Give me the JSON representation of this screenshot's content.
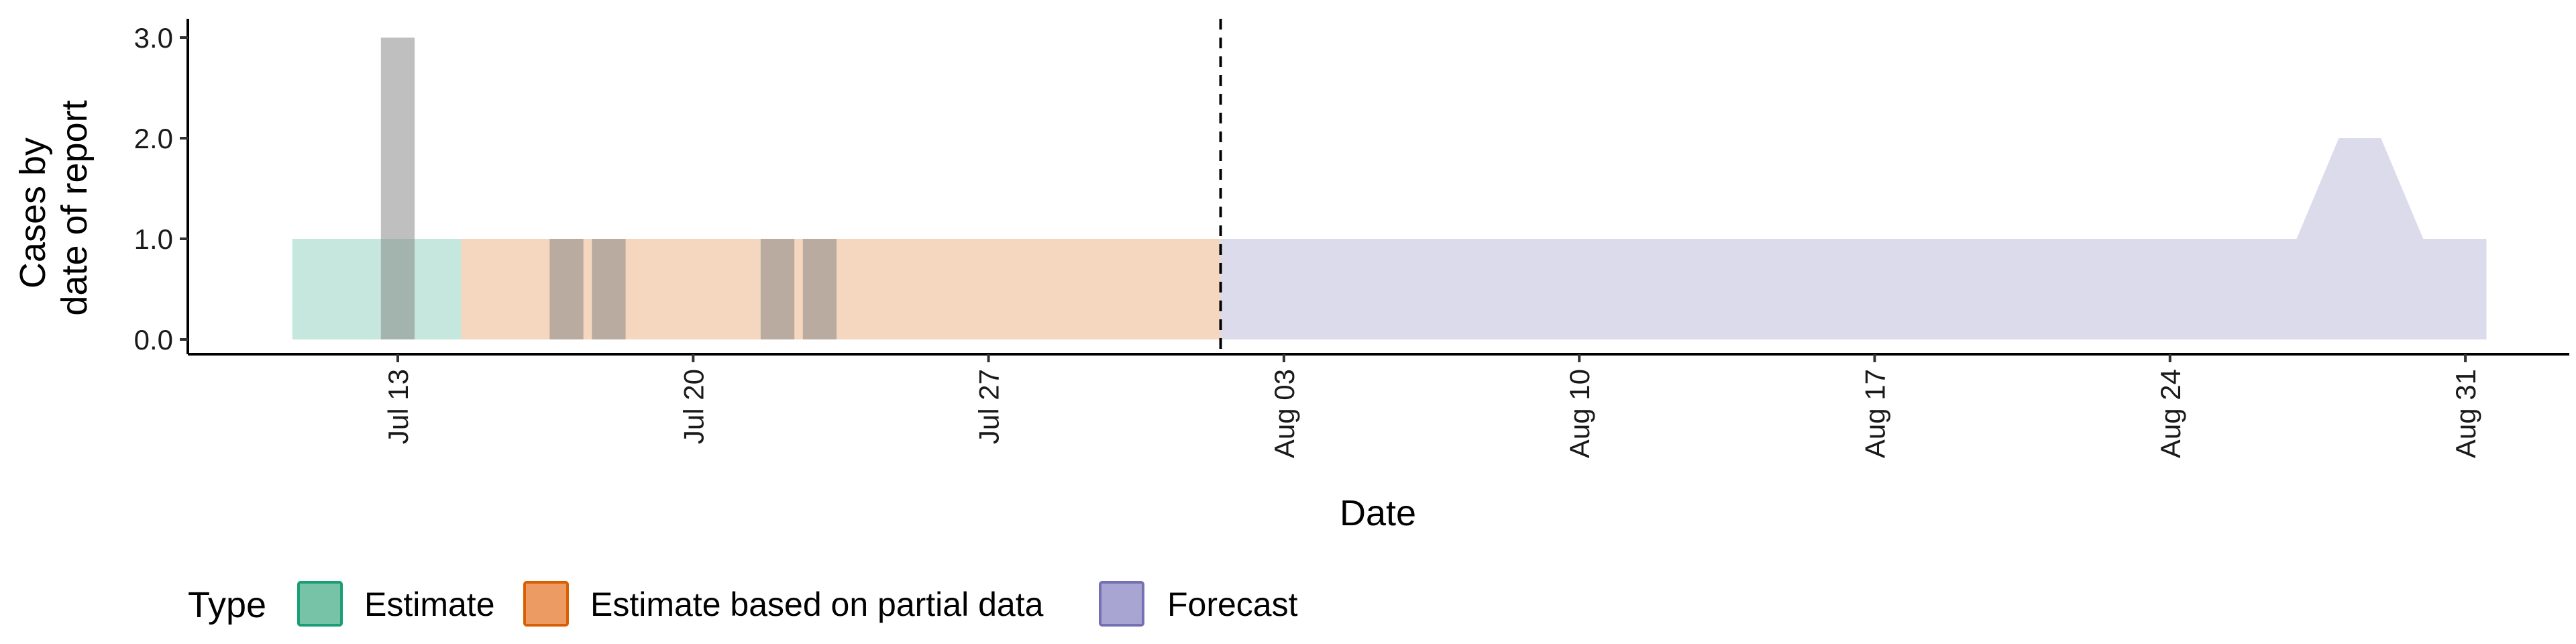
{
  "chart_data": {
    "type": "bar",
    "title": "",
    "xlabel": "Date",
    "ylabel": [
      "Cases by",
      "date of report"
    ],
    "ylim": [
      0,
      3
    ],
    "y_ticks": [
      "0.0",
      "1.0",
      "2.0",
      "3.0"
    ],
    "x_ticks": [
      {
        "date": "2020-07-13",
        "label": "Jul 13"
      },
      {
        "date": "2020-07-20",
        "label": "Jul 20"
      },
      {
        "date": "2020-07-27",
        "label": "Jul 27"
      },
      {
        "date": "2020-08-03",
        "label": "Aug 03"
      },
      {
        "date": "2020-08-10",
        "label": "Aug 10"
      },
      {
        "date": "2020-08-17",
        "label": "Aug 17"
      },
      {
        "date": "2020-08-24",
        "label": "Aug 24"
      },
      {
        "date": "2020-08-31",
        "label": "Aug 31"
      }
    ],
    "x_range": [
      "2020-07-09",
      "2020-09-02"
    ],
    "forecast_date": "2020-08-01",
    "observed_cases": [
      {
        "date": "2020-07-13",
        "value": 3
      },
      {
        "date": "2020-07-17",
        "value": 1
      },
      {
        "date": "2020-07-18",
        "value": 1
      },
      {
        "date": "2020-07-22",
        "value": 1
      },
      {
        "date": "2020-07-23",
        "value": 1
      }
    ],
    "series": [
      {
        "name": "Estimate",
        "color": "#1b9e77",
        "points": [
          {
            "date": "2020-07-11",
            "value": 1
          },
          {
            "date": "2020-07-14",
            "value": 1
          }
        ]
      },
      {
        "name": "Estimate based on partial data",
        "color": "#d95f02",
        "points": [
          {
            "date": "2020-07-15",
            "value": 1
          },
          {
            "date": "2020-08-01",
            "value": 1
          }
        ]
      },
      {
        "name": "Forecast",
        "color": "#7570b3",
        "points": [
          {
            "date": "2020-08-02",
            "value": 1
          },
          {
            "date": "2020-08-27",
            "value": 1
          },
          {
            "date": "2020-08-28",
            "value": 2
          },
          {
            "date": "2020-08-29",
            "value": 2
          },
          {
            "date": "2020-08-30",
            "value": 1
          },
          {
            "date": "2020-08-31",
            "value": 1
          }
        ]
      }
    ],
    "legend": {
      "title": "Type",
      "position": "bottom",
      "items": [
        {
          "label": "Estimate",
          "fill": "#76c3a8",
          "stroke": "#1b9e77"
        },
        {
          "label": "Estimate based on partial data",
          "fill": "#ec9b63",
          "stroke": "#d95f02"
        },
        {
          "label": "Forecast",
          "fill": "#a8a5d2",
          "stroke": "#7570b3"
        }
      ]
    }
  }
}
